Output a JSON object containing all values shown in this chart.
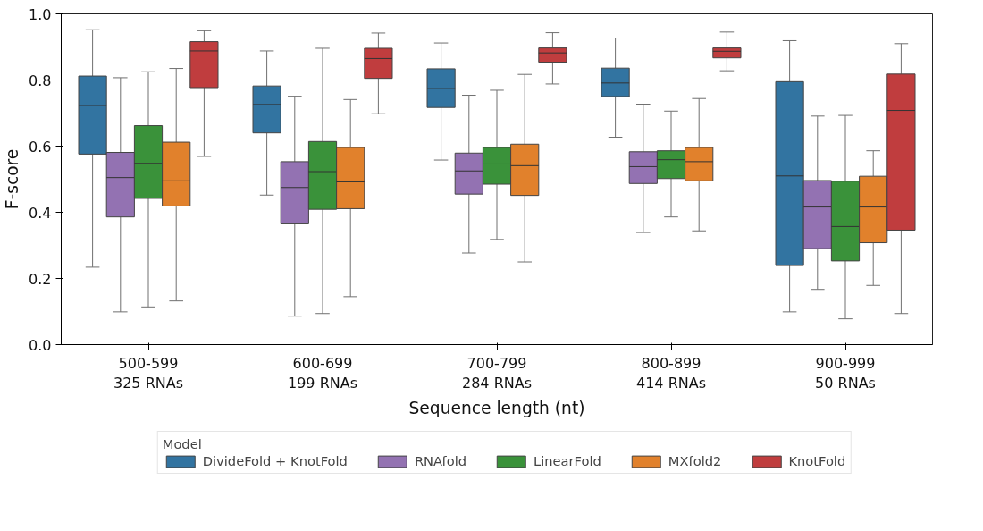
{
  "chart_data": {
    "type": "box",
    "xlabel": "Sequence length (nt)",
    "ylabel": "F-score",
    "legend_title": "Model",
    "categories": [
      "500-599\n325 RNAs",
      "600-699\n199 RNAs",
      "700-799\n284 RNAs",
      "800-899\n414 RNAs",
      "900-999\n50 RNAs"
    ],
    "ylim": [
      0,
      1
    ],
    "yticks": [
      {
        "value": 0,
        "label": "0.0"
      },
      0.2,
      0.4,
      0.6,
      0.8,
      {
        "value": 1,
        "label": "1.0"
      }
    ],
    "grid": false,
    "legend": "bottom",
    "series": [
      {
        "name": "DivideFold + KnotFold",
        "color": "#3274a1",
        "boxes": [
          {
            "low": 0.234,
            "q1": 0.576,
            "median": 0.723,
            "q3": 0.812,
            "high": 0.952
          },
          {
            "low": 0.452,
            "q1": 0.64,
            "median": 0.726,
            "q3": 0.782,
            "high": 0.888
          },
          {
            "low": 0.558,
            "q1": 0.717,
            "median": 0.774,
            "q3": 0.834,
            "high": 0.912
          },
          {
            "low": 0.627,
            "q1": 0.75,
            "median": 0.791,
            "q3": 0.836,
            "high": 0.927
          },
          {
            "low": 0.099,
            "q1": 0.239,
            "median": 0.51,
            "q3": 0.795,
            "high": 0.919
          }
        ]
      },
      {
        "name": "RNAfold",
        "color": "#9372b2",
        "boxes": [
          {
            "low": 0.099,
            "q1": 0.386,
            "median": 0.505,
            "q3": 0.581,
            "high": 0.807
          },
          {
            "low": 0.086,
            "q1": 0.365,
            "median": 0.475,
            "q3": 0.553,
            "high": 0.751
          },
          {
            "low": 0.277,
            "q1": 0.455,
            "median": 0.525,
            "q3": 0.579,
            "high": 0.754
          },
          {
            "low": 0.339,
            "q1": 0.487,
            "median": 0.538,
            "q3": 0.583,
            "high": 0.727
          },
          {
            "low": 0.167,
            "q1": 0.29,
            "median": 0.416,
            "q3": 0.496,
            "high": 0.691
          }
        ]
      },
      {
        "name": "LinearFold",
        "color": "#3a923a",
        "boxes": [
          {
            "low": 0.114,
            "q1": 0.442,
            "median": 0.548,
            "q3": 0.662,
            "high": 0.825
          },
          {
            "low": 0.094,
            "q1": 0.409,
            "median": 0.523,
            "q3": 0.614,
            "high": 0.896
          },
          {
            "low": 0.318,
            "q1": 0.485,
            "median": 0.546,
            "q3": 0.596,
            "high": 0.769
          },
          {
            "low": 0.386,
            "q1": 0.502,
            "median": 0.559,
            "q3": 0.586,
            "high": 0.706
          },
          {
            "low": 0.078,
            "q1": 0.253,
            "median": 0.357,
            "q3": 0.494,
            "high": 0.693
          }
        ]
      },
      {
        "name": "MXfold2",
        "color": "#e1812c",
        "boxes": [
          {
            "low": 0.132,
            "q1": 0.419,
            "median": 0.495,
            "q3": 0.612,
            "high": 0.835
          },
          {
            "low": 0.145,
            "q1": 0.411,
            "median": 0.492,
            "q3": 0.596,
            "high": 0.741
          },
          {
            "low": 0.25,
            "q1": 0.451,
            "median": 0.541,
            "q3": 0.606,
            "high": 0.817
          },
          {
            "low": 0.344,
            "q1": 0.495,
            "median": 0.553,
            "q3": 0.596,
            "high": 0.744
          },
          {
            "low": 0.179,
            "q1": 0.308,
            "median": 0.416,
            "q3": 0.509,
            "high": 0.586
          }
        ]
      },
      {
        "name": "KnotFold",
        "color": "#c03d3e",
        "boxes": [
          {
            "low": 0.569,
            "q1": 0.777,
            "median": 0.888,
            "q3": 0.916,
            "high": 0.949
          },
          {
            "low": 0.698,
            "q1": 0.805,
            "median": 0.865,
            "q3": 0.896,
            "high": 0.942
          },
          {
            "low": 0.788,
            "q1": 0.854,
            "median": 0.882,
            "q3": 0.897,
            "high": 0.943
          },
          {
            "low": 0.828,
            "q1": 0.867,
            "median": 0.887,
            "q3": 0.897,
            "high": 0.945
          },
          {
            "low": 0.094,
            "q1": 0.346,
            "median": 0.708,
            "q3": 0.818,
            "high": 0.91
          }
        ]
      }
    ]
  }
}
